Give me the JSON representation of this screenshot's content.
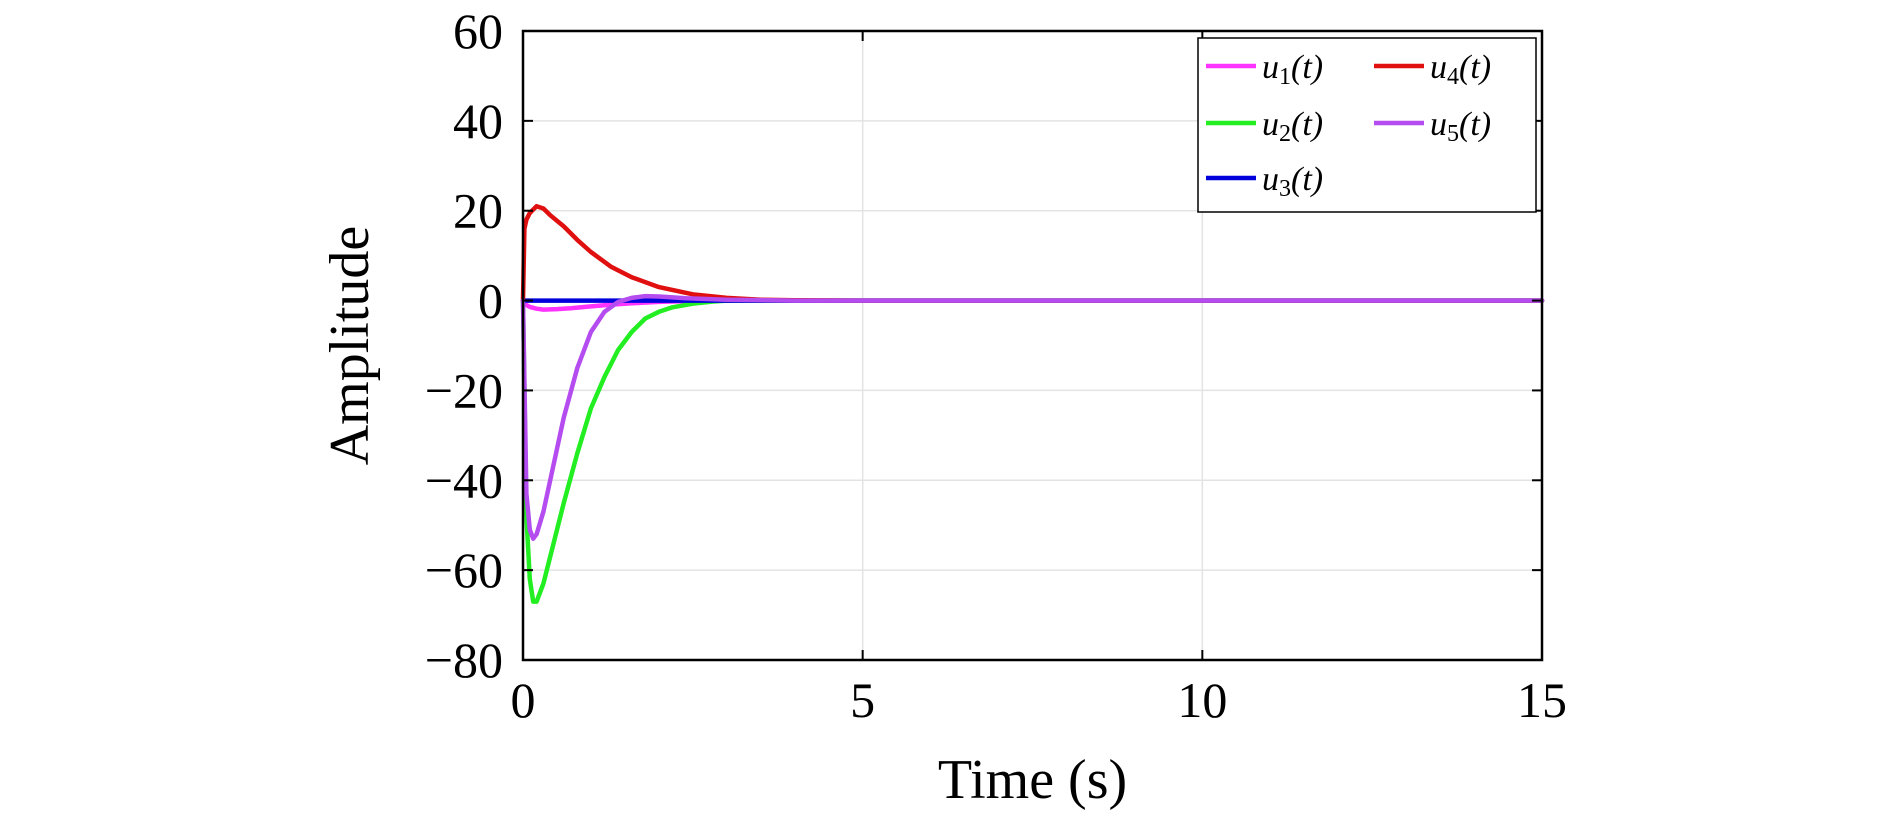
{
  "chart_data": {
    "type": "line",
    "title": "",
    "xlabel": "Time (s)",
    "ylabel": "Amplitude",
    "xlim": [
      0,
      15
    ],
    "ylim": [
      -80,
      60
    ],
    "xticks": [
      0,
      5,
      10,
      15
    ],
    "xtick_labels": [
      "0",
      "5",
      "10",
      "15"
    ],
    "yticks": [
      60,
      40,
      20,
      0,
      -20,
      -40,
      -60,
      -80
    ],
    "ytick_labels": [
      "60",
      "40",
      "20",
      "0",
      "−20",
      "−40",
      "−60",
      "−80"
    ],
    "grid": true,
    "legend_position": "top-right",
    "series": [
      {
        "name": "u1(t)",
        "label_main": "u",
        "label_sub": "1",
        "label_arg": "(t)",
        "color": "#ff33ff",
        "x": [
          0,
          0.03,
          0.1,
          0.2,
          0.3,
          0.5,
          0.7,
          1.0,
          1.3,
          1.6,
          2.0,
          2.5,
          3.0,
          15
        ],
        "y": [
          0,
          -0.8,
          -1.4,
          -1.8,
          -2.0,
          -1.9,
          -1.7,
          -1.3,
          -0.9,
          -0.6,
          -0.3,
          -0.1,
          0,
          0
        ]
      },
      {
        "name": "u2(t)",
        "label_main": "u",
        "label_sub": "2",
        "label_arg": "(t)",
        "color": "#22ee22",
        "x": [
          0,
          0.05,
          0.1,
          0.15,
          0.2,
          0.3,
          0.4,
          0.6,
          0.8,
          1.0,
          1.2,
          1.4,
          1.6,
          1.8,
          2.0,
          2.2,
          2.5,
          2.8,
          3.0,
          3.5,
          15
        ],
        "y": [
          0,
          -48,
          -62,
          -67,
          -67,
          -63,
          -57,
          -45,
          -34,
          -24,
          -17,
          -11,
          -7,
          -4,
          -2.5,
          -1.5,
          -0.7,
          -0.2,
          0,
          0,
          0
        ]
      },
      {
        "name": "u3(t)",
        "label_main": "u",
        "label_sub": "3",
        "label_arg": "(t)",
        "color": "#0000dd",
        "x": [
          0,
          15
        ],
        "y": [
          0,
          0
        ]
      },
      {
        "name": "u4(t)",
        "label_main": "u",
        "label_sub": "4",
        "label_arg": "(t)",
        "color": "#e01010",
        "x": [
          0,
          0.02,
          0.05,
          0.1,
          0.2,
          0.3,
          0.4,
          0.6,
          0.8,
          1.0,
          1.3,
          1.6,
          2.0,
          2.5,
          3.0,
          3.5,
          4.0,
          5.0,
          15
        ],
        "y": [
          0,
          16,
          18,
          19.5,
          21,
          20.5,
          19,
          16.5,
          13.5,
          10.8,
          7.5,
          5.2,
          3.0,
          1.4,
          0.6,
          0.2,
          0.05,
          0,
          0
        ]
      },
      {
        "name": "u5(t)",
        "label_main": "u",
        "label_sub": "5",
        "label_arg": "(t)",
        "color": "#b44cf0",
        "x": [
          0,
          0.05,
          0.1,
          0.15,
          0.2,
          0.3,
          0.4,
          0.5,
          0.6,
          0.8,
          1.0,
          1.2,
          1.4,
          1.6,
          1.8,
          2.0,
          2.4,
          3.0,
          4.0,
          15
        ],
        "y": [
          0,
          -43,
          -51,
          -53,
          -52,
          -47,
          -40,
          -33,
          -26,
          -15,
          -7,
          -2.5,
          -0.3,
          0.6,
          1.0,
          0.9,
          0.5,
          0.2,
          0,
          0
        ]
      }
    ]
  }
}
